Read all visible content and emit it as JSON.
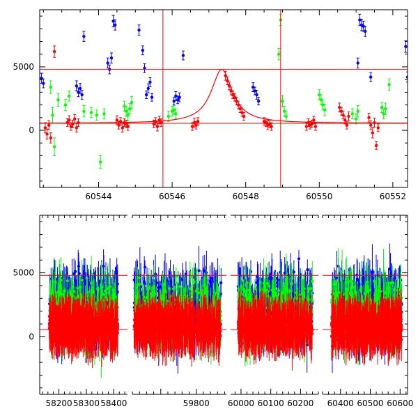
{
  "chart_data": [
    {
      "type": "scatter",
      "title": "",
      "xlabel": "",
      "ylabel": "",
      "xlim": [
        60542.4,
        60552.4
      ],
      "ylim": [
        -4500,
        9500
      ],
      "x_ticks": [
        60544,
        60546,
        60548,
        60550,
        60552
      ],
      "x_tick_labels": [
        "60544",
        "60546",
        "60548",
        "60550",
        "60552"
      ],
      "y_ticks": [
        0,
        5000
      ],
      "y_tick_labels": [
        "0",
        "5000"
      ],
      "hlines": [
        4800,
        550
      ],
      "vlines": [
        60545.75,
        60548.95
      ],
      "colors": {
        "blue": "#0000ff",
        "green": "#00ff00",
        "red": "#ff0000",
        "model": "#ff0000",
        "frame": "#000000"
      },
      "model_curve": {
        "peak_x": 60547.35,
        "peak_y": 4800,
        "baseline": 550,
        "width": 0.35
      },
      "series": [
        {
          "color": "blue",
          "points": [
            [
              60542.45,
              4100,
              400
            ],
            [
              60542.5,
              3700,
              350
            ],
            [
              60543.4,
              3500,
              400
            ],
            [
              60543.45,
              3000,
              350
            ],
            [
              60543.5,
              3300,
              400
            ],
            [
              60543.55,
              2800,
              350
            ],
            [
              60543.6,
              7400,
              400
            ],
            [
              60544.25,
              5300,
              400
            ],
            [
              60544.3,
              4800,
              350
            ],
            [
              60544.35,
              5700,
              400
            ],
            [
              60544.4,
              8600,
              450
            ],
            [
              60544.45,
              8300,
              400
            ],
            [
              60545.1,
              7900,
              400
            ],
            [
              60545.2,
              6300,
              350
            ],
            [
              60545.25,
              4900,
              350
            ],
            [
              60545.3,
              2800,
              300
            ],
            [
              60545.35,
              3300,
              350
            ],
            [
              60545.4,
              3800,
              350
            ],
            [
              60545.45,
              2600,
              300
            ],
            [
              60546.1,
              2700,
              350
            ],
            [
              60546.15,
              2400,
              300
            ],
            [
              60546.2,
              2600,
              350
            ],
            [
              60546.3,
              5900,
              350
            ],
            [
              60546.05,
              2300,
              300
            ],
            [
              60548.2,
              3400,
              350
            ],
            [
              60548.25,
              3100,
              300
            ],
            [
              60548.3,
              2800,
              350
            ],
            [
              60548.35,
              2300,
              300
            ],
            [
              60551.05,
              5300,
              400
            ],
            [
              60551.1,
              8700,
              450
            ],
            [
              60551.15,
              8300,
              450
            ],
            [
              60551.2,
              8200,
              400
            ],
            [
              60551.25,
              7800,
              400
            ],
            [
              60551.4,
              4200,
              350
            ],
            [
              60552.35,
              6600,
              450
            ],
            [
              60552.4,
              4200,
              400
            ]
          ]
        },
        {
          "color": "green",
          "points": [
            [
              60542.7,
              3400,
              500
            ],
            [
              60542.75,
              1200,
              600
            ],
            [
              60542.8,
              -1300,
              700
            ],
            [
              60542.9,
              2400,
              500
            ],
            [
              60543.1,
              2000,
              450
            ],
            [
              60543.2,
              2700,
              400
            ],
            [
              60543.6,
              1500,
              450
            ],
            [
              60543.8,
              1400,
              400
            ],
            [
              60543.95,
              1200,
              400
            ],
            [
              60544.05,
              -2500,
              500
            ],
            [
              60544.15,
              1300,
              400
            ],
            [
              60544.7,
              1900,
              400
            ],
            [
              60544.75,
              1500,
              400
            ],
            [
              60544.8,
              1200,
              450
            ],
            [
              60544.85,
              1700,
              400
            ],
            [
              60544.9,
              2200,
              450
            ],
            [
              60545.9,
              1100,
              400
            ],
            [
              60546.0,
              1500,
              400
            ],
            [
              60546.05,
              1600,
              350
            ],
            [
              60546.1,
              1300,
              400
            ],
            [
              60548.9,
              6000,
              450
            ],
            [
              60548.95,
              8700,
              450
            ],
            [
              60549.0,
              2300,
              450
            ],
            [
              60549.05,
              1500,
              400
            ],
            [
              60549.1,
              1100,
              400
            ],
            [
              60550.0,
              2800,
              400
            ],
            [
              60550.05,
              2400,
              400
            ],
            [
              60550.1,
              2000,
              400
            ],
            [
              60550.15,
              1600,
              450
            ],
            [
              60550.9,
              1300,
              400
            ],
            [
              60551.0,
              900,
              400
            ],
            [
              60551.05,
              1500,
              450
            ],
            [
              60551.7,
              1800,
              400
            ],
            [
              60551.75,
              1300,
              400
            ],
            [
              60551.8,
              1700,
              450
            ],
            [
              60551.9,
              3600,
              450
            ]
          ]
        },
        {
          "color": "red",
          "points": [
            [
              60542.55,
              200,
              400
            ],
            [
              60542.6,
              -300,
              400
            ],
            [
              60542.65,
              400,
              350
            ],
            [
              60542.7,
              -600,
              400
            ],
            [
              60542.8,
              6200,
              450
            ],
            [
              60543.15,
              600,
              300
            ],
            [
              60543.2,
              800,
              350
            ],
            [
              60543.25,
              300,
              300
            ],
            [
              60543.3,
              500,
              300
            ],
            [
              60543.35,
              900,
              350
            ],
            [
              60543.4,
              200,
              350
            ],
            [
              60543.45,
              600,
              300
            ],
            [
              60544.5,
              800,
              350
            ],
            [
              60544.55,
              400,
              300
            ],
            [
              60544.6,
              700,
              300
            ],
            [
              60544.65,
              200,
              350
            ],
            [
              60544.7,
              600,
              300
            ],
            [
              60544.75,
              500,
              300
            ],
            [
              60544.8,
              300,
              300
            ],
            [
              60545.5,
              500,
              300
            ],
            [
              60545.55,
              700,
              300
            ],
            [
              60545.6,
              300,
              350
            ],
            [
              60545.65,
              800,
              300
            ],
            [
              60545.7,
              600,
              300
            ],
            [
              60546.55,
              300,
              300
            ],
            [
              60546.6,
              600,
              350
            ],
            [
              60546.65,
              400,
              300
            ],
            [
              60546.7,
              700,
              300
            ],
            [
              60547.45,
              4300,
              350
            ],
            [
              60547.5,
              3900,
              300
            ],
            [
              60547.55,
              3500,
              300
            ],
            [
              60547.6,
              3100,
              300
            ],
            [
              60547.65,
              2800,
              300
            ],
            [
              60547.7,
              2600,
              300
            ],
            [
              60547.75,
              2300,
              300
            ],
            [
              60547.8,
              2000,
              300
            ],
            [
              60547.85,
              1700,
              300
            ],
            [
              60547.9,
              1400,
              300
            ],
            [
              60547.95,
              1100,
              300
            ],
            [
              60548.5,
              700,
              300
            ],
            [
              60548.55,
              600,
              300
            ],
            [
              60548.6,
              400,
              350
            ],
            [
              60548.65,
              500,
              300
            ],
            [
              60548.7,
              300,
              300
            ],
            [
              60549.65,
              300,
              300
            ],
            [
              60549.7,
              600,
              300
            ],
            [
              60549.75,
              400,
              300
            ],
            [
              60549.8,
              500,
              300
            ],
            [
              60549.85,
              800,
              300
            ],
            [
              60549.9,
              300,
              300
            ],
            [
              60550.55,
              1800,
              350
            ],
            [
              60550.6,
              1500,
              300
            ],
            [
              60550.65,
              1200,
              300
            ],
            [
              60550.7,
              800,
              300
            ],
            [
              60550.75,
              400,
              300
            ],
            [
              60550.8,
              1100,
              350
            ],
            [
              60551.35,
              1000,
              350
            ],
            [
              60551.4,
              400,
              350
            ],
            [
              60551.45,
              -200,
              400
            ],
            [
              60551.5,
              600,
              350
            ],
            [
              60551.55,
              -1200,
              300
            ],
            [
              60551.6,
              200,
              300
            ]
          ]
        }
      ]
    },
    {
      "type": "scatter",
      "title": "",
      "xlabel": "",
      "ylabel": "",
      "ylim": [
        -4500,
        9500
      ],
      "y_ticks": [
        0,
        5000
      ],
      "y_tick_labels": [
        "0",
        "5000"
      ],
      "hlines": [
        4800,
        550
      ],
      "broken_x_axis": [
        {
          "xlim": [
            58130,
            58450
          ],
          "ticks": [
            58200,
            58300,
            58400
          ],
          "tick_labels": [
            "58200",
            "58300",
            "58400"
          ],
          "data_range": [
            58165,
            58415
          ]
        },
        {
          "xlim": [
            59620,
            59885
          ],
          "ticks": [
            59800
          ],
          "tick_labels": [
            "59800"
          ],
          "data_range": [
            59625,
            59870
          ]
        },
        {
          "xlim": [
            59965,
            60260
          ],
          "ticks": [
            60000,
            60100,
            60200
          ],
          "tick_labels": [
            "60000",
            "60100",
            "60200"
          ],
          "data_range": [
            59990,
            60240
          ]
        },
        {
          "xlim": [
            60340,
            60625
          ],
          "ticks": [
            60400,
            60500,
            60600
          ],
          "tick_labels": [
            "60400",
            "60500",
            "60600"
          ],
          "data_range": [
            60370,
            60605
          ]
        }
      ],
      "series": [
        {
          "color": "blue",
          "center": 2400,
          "spread": 3400,
          "points_per_panel": 520
        },
        {
          "color": "green",
          "center": 2100,
          "spread": 3500,
          "points_per_panel": 260
        },
        {
          "color": "red",
          "center": 800,
          "spread": 1400,
          "points_per_panel": 620
        }
      ]
    }
  ]
}
